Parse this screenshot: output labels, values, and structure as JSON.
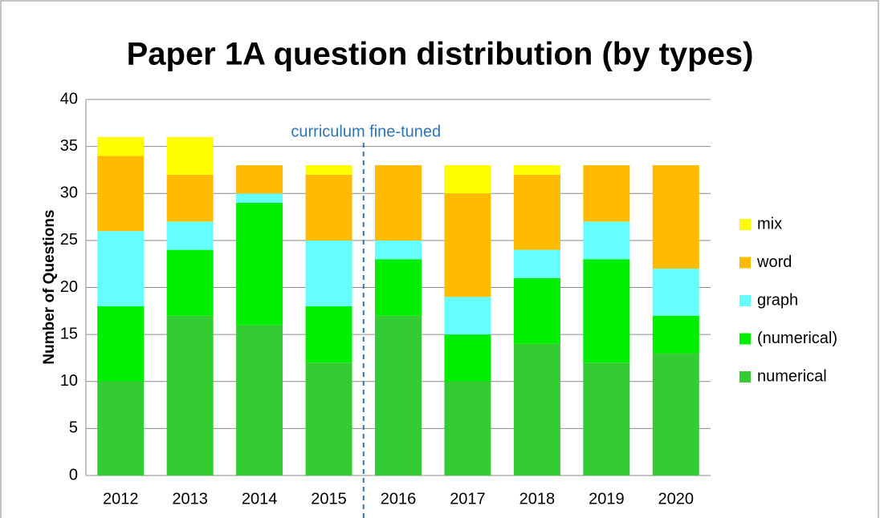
{
  "chart_data": {
    "type": "stacked_bar",
    "title": "Paper 1A question distribution (by types)",
    "y_label": "Number of Questions",
    "annotation": "curriculum fine-tuned",
    "categories": [
      "2012",
      "2013",
      "2014",
      "2015",
      "2016",
      "2017",
      "2018",
      "2019",
      "2020"
    ],
    "series": [
      {
        "name": "numerical",
        "color": "#33cc33",
        "values": [
          10,
          17,
          16,
          12,
          17,
          10,
          14,
          12,
          13
        ]
      },
      {
        "name": "(numerical)",
        "color": "#00ee00",
        "values": [
          8,
          7,
          13,
          6,
          6,
          5,
          7,
          11,
          4
        ]
      },
      {
        "name": "graph",
        "color": "#66ffff",
        "values": [
          8,
          3,
          1,
          7,
          2,
          4,
          3,
          4,
          5
        ]
      },
      {
        "name": "word",
        "color": "#ffbb00",
        "values": [
          8,
          5,
          3,
          7,
          8,
          11,
          8,
          6,
          11
        ]
      },
      {
        "name": "mix",
        "color": "#ffff00",
        "values": [
          2,
          4,
          0,
          1,
          0,
          3,
          1,
          0,
          0
        ]
      }
    ],
    "ylim": [
      0,
      40
    ],
    "yticks": [
      0,
      5,
      10,
      15,
      20,
      25,
      30,
      35,
      40
    ],
    "grid": true,
    "legend": "right"
  }
}
